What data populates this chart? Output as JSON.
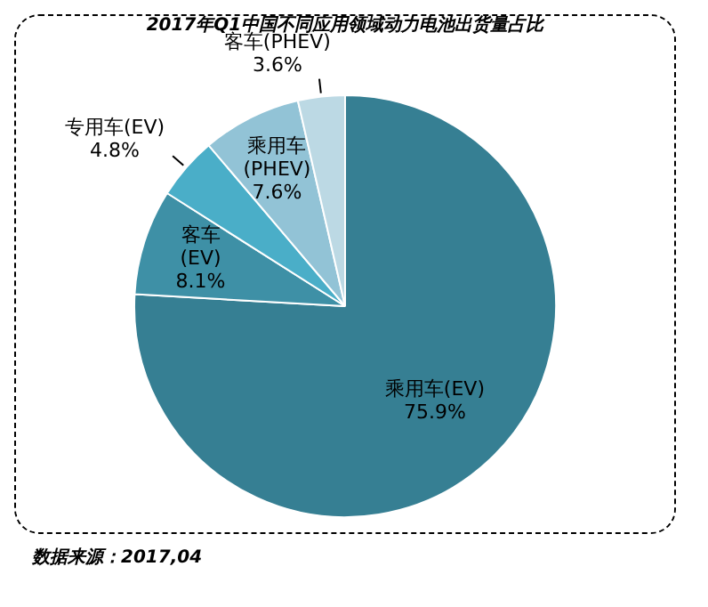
{
  "chart_data": {
    "type": "pie",
    "title": "2017年Q1中国不同应用领域动力电池出货量占比",
    "categories": [
      "乘用车(EV)",
      "客车(EV)",
      "专用车(EV)",
      "乘用车(PHEV)",
      "客车(PHEV)"
    ],
    "values": [
      75.9,
      8.1,
      4.8,
      7.6,
      3.6
    ],
    "value_labels": [
      "75.9%",
      "8.1%",
      "4.8%",
      "7.6%",
      "3.6%"
    ],
    "colors": [
      "#367f93",
      "#3e90a6",
      "#4aaec8",
      "#92c3d6",
      "#bcd9e4"
    ],
    "legend": false,
    "annotations": [
      "数据来源：2017,04"
    ]
  }
}
